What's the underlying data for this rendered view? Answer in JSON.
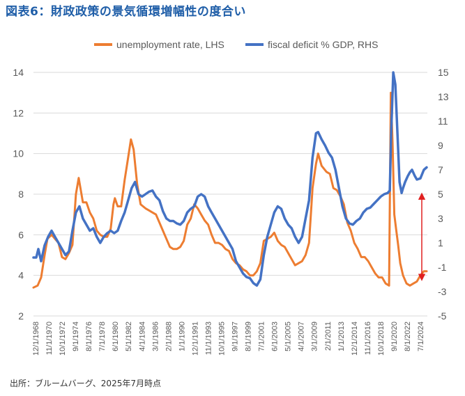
{
  "title": "図表6：財政政策の景気循環増幅性の度合い",
  "source": "出所：ブルームバーグ、2025年7月時点",
  "colors": {
    "unemployment": "#ed7d31",
    "deficit": "#4472c4",
    "arrow": "#e02020",
    "axis_text": "#595959",
    "gridline": "#d9d9d9"
  },
  "chart_data": {
    "type": "line",
    "title": "図表6：財政政策の景気循環増幅性の度合い",
    "legend_position": "top",
    "grid": true,
    "left_axis": {
      "ylim": [
        2,
        14
      ],
      "ticks": [
        2,
        4,
        6,
        8,
        10,
        12,
        14
      ]
    },
    "right_axis": {
      "ylim": [
        -5,
        15
      ],
      "ticks": [
        -5,
        -3,
        -1,
        1,
        3,
        5,
        7,
        9,
        11,
        13,
        15
      ]
    },
    "x_range": [
      1968.9,
      2025.5
    ],
    "x_tick_labels": [
      "12/1/1968",
      "11/1/1970",
      "10/1/1972",
      "9/1/1974",
      "8/1/1976",
      "7/1/1978",
      "6/1/1980",
      "5/1/1982",
      "4/1/1984",
      "3/1/1986",
      "2/1/1988",
      "1/1/1990",
      "12/1/1991",
      "11/1/1993",
      "10/1/1995",
      "9/1/1997",
      "8/1/1999",
      "7/1/2001",
      "6/1/2003",
      "5/1/2005",
      "4/1/2007",
      "3/1/2009",
      "2/1/2011",
      "1/1/2013",
      "12/1/2014",
      "11/1/2016",
      "10/1/2018",
      "9/1/2020",
      "8/1/2022",
      "7/1/2024"
    ],
    "series": [
      {
        "name": "unemployment rate, LHS",
        "axis": "left",
        "x": [
          1968.9,
          1969.5,
          1970.0,
          1970.5,
          1970.9,
          1971.5,
          1972.0,
          1972.5,
          1973.0,
          1973.5,
          1974.0,
          1974.5,
          1975.0,
          1975.4,
          1975.7,
          1976.0,
          1976.5,
          1977.0,
          1977.5,
          1978.0,
          1978.5,
          1979.0,
          1979.5,
          1980.0,
          1980.4,
          1980.6,
          1981.0,
          1981.5,
          1982.0,
          1982.5,
          1982.9,
          1983.3,
          1983.8,
          1984.3,
          1985.0,
          1985.5,
          1986.0,
          1986.5,
          1987.0,
          1987.5,
          1988.0,
          1988.5,
          1989.0,
          1989.5,
          1990.0,
          1990.5,
          1991.0,
          1991.5,
          1992.0,
          1992.5,
          1993.0,
          1993.5,
          1994.0,
          1994.5,
          1995.0,
          1995.5,
          1996.0,
          1996.5,
          1997.0,
          1997.5,
          1998.0,
          1998.5,
          1999.0,
          1999.5,
          2000.0,
          2000.5,
          2001.0,
          2001.5,
          2002.0,
          2002.5,
          2003.0,
          2003.5,
          2004.0,
          2004.5,
          2005.0,
          2005.5,
          2006.0,
          2006.5,
          2007.0,
          2007.5,
          2008.0,
          2008.5,
          2009.0,
          2009.5,
          2009.8,
          2010.3,
          2011.0,
          2011.5,
          2012.0,
          2012.5,
          2013.0,
          2013.5,
          2014.0,
          2014.5,
          2015.0,
          2015.5,
          2016.0,
          2016.5,
          2017.0,
          2017.5,
          2018.0,
          2018.5,
          2019.0,
          2019.5,
          2020.0,
          2020.25,
          2020.5,
          2020.75,
          2021.0,
          2021.3,
          2021.6,
          2022.0,
          2022.5,
          2023.0,
          2023.5,
          2024.0,
          2024.5,
          2025.0,
          2025.4
        ],
        "values": [
          3.4,
          3.5,
          3.9,
          5.0,
          5.8,
          6.0,
          5.8,
          5.6,
          4.9,
          4.8,
          5.1,
          5.5,
          8.0,
          8.8,
          8.2,
          7.6,
          7.6,
          7.1,
          6.8,
          6.2,
          6.0,
          5.9,
          5.9,
          6.3,
          7.5,
          7.8,
          7.4,
          7.4,
          8.7,
          9.8,
          10.7,
          10.2,
          8.5,
          7.5,
          7.3,
          7.2,
          7.1,
          7.0,
          6.6,
          6.2,
          5.8,
          5.4,
          5.3,
          5.3,
          5.4,
          5.7,
          6.5,
          6.8,
          7.5,
          7.3,
          7.0,
          6.7,
          6.5,
          6.0,
          5.6,
          5.6,
          5.5,
          5.3,
          5.2,
          4.8,
          4.6,
          4.5,
          4.3,
          4.2,
          4.0,
          4.0,
          4.2,
          4.6,
          5.7,
          5.8,
          5.9,
          6.1,
          5.7,
          5.5,
          5.4,
          5.1,
          4.8,
          4.5,
          4.6,
          4.7,
          5.0,
          5.6,
          8.3,
          9.5,
          10.0,
          9.4,
          9.1,
          9.0,
          8.3,
          8.2,
          7.9,
          7.5,
          6.6,
          6.2,
          5.6,
          5.3,
          4.9,
          4.9,
          4.7,
          4.4,
          4.1,
          3.9,
          3.9,
          3.6,
          3.5,
          13.0,
          10.5,
          7.0,
          6.3,
          5.5,
          4.6,
          4.0,
          3.6,
          3.5,
          3.6,
          3.7,
          4.0,
          4.2,
          4.2
        ]
      },
      {
        "name": "fiscal deficit % GDP, RHS",
        "axis": "right",
        "x": [
          1968.9,
          1969.3,
          1969.6,
          1970.0,
          1970.5,
          1971.0,
          1971.5,
          1972.0,
          1972.5,
          1973.0,
          1973.5,
          1974.0,
          1974.5,
          1975.0,
          1975.5,
          1976.0,
          1976.5,
          1977.0,
          1977.5,
          1978.0,
          1978.5,
          1979.0,
          1979.5,
          1980.0,
          1980.5,
          1981.0,
          1981.5,
          1982.0,
          1982.5,
          1983.0,
          1983.5,
          1984.0,
          1984.5,
          1985.0,
          1985.5,
          1986.0,
          1986.5,
          1987.0,
          1987.5,
          1988.0,
          1988.5,
          1989.0,
          1989.5,
          1990.0,
          1990.5,
          1991.0,
          1991.5,
          1992.0,
          1992.5,
          1993.0,
          1993.5,
          1994.0,
          1994.5,
          1995.0,
          1995.5,
          1996.0,
          1996.5,
          1997.0,
          1997.5,
          1998.0,
          1998.5,
          1999.0,
          1999.5,
          2000.0,
          2000.5,
          2001.0,
          2001.5,
          2002.0,
          2002.5,
          2003.0,
          2003.5,
          2004.0,
          2004.5,
          2005.0,
          2005.5,
          2006.0,
          2006.5,
          2007.0,
          2007.5,
          2008.0,
          2008.5,
          2009.0,
          2009.5,
          2009.8,
          2010.3,
          2010.8,
          2011.3,
          2011.8,
          2012.3,
          2012.8,
          2013.3,
          2013.8,
          2014.3,
          2014.8,
          2015.3,
          2015.8,
          2016.3,
          2016.8,
          2017.3,
          2017.8,
          2018.3,
          2018.8,
          2019.3,
          2019.8,
          2020.1,
          2020.3,
          2020.6,
          2020.9,
          2021.2,
          2021.5,
          2021.8,
          2022.0,
          2022.3,
          2022.7,
          2023.0,
          2023.3,
          2023.7,
          2024.0,
          2024.5,
          2025.0,
          2025.4
        ],
        "values": [
          -0.2,
          -0.2,
          0.5,
          -0.5,
          0.8,
          1.5,
          2.0,
          1.5,
          1.0,
          0.5,
          0.0,
          0.3,
          2.0,
          3.5,
          4.0,
          3.0,
          2.5,
          2.0,
          2.2,
          1.5,
          1.0,
          1.5,
          1.8,
          2.0,
          1.8,
          2.0,
          2.8,
          3.5,
          4.5,
          5.5,
          6.0,
          5.0,
          4.8,
          5.0,
          5.2,
          5.3,
          4.8,
          4.5,
          3.6,
          3.0,
          2.8,
          2.8,
          2.6,
          2.5,
          2.8,
          3.5,
          3.8,
          4.0,
          4.8,
          5.0,
          4.8,
          4.0,
          3.5,
          3.0,
          2.5,
          2.0,
          1.5,
          1.0,
          0.5,
          -0.5,
          -1.0,
          -1.5,
          -1.8,
          -1.9,
          -2.3,
          -2.5,
          -2.0,
          0.0,
          1.5,
          2.5,
          3.5,
          4.0,
          3.8,
          3.0,
          2.5,
          2.2,
          1.5,
          1.0,
          1.5,
          3.0,
          4.5,
          8.0,
          10.0,
          10.1,
          9.5,
          9.0,
          8.4,
          8.0,
          7.0,
          5.5,
          4.0,
          3.0,
          2.6,
          2.5,
          2.8,
          3.0,
          3.5,
          3.8,
          3.9,
          4.2,
          4.5,
          4.8,
          5.0,
          5.1,
          5.3,
          10.0,
          15.0,
          14.0,
          10.0,
          6.0,
          5.1,
          5.5,
          6.0,
          6.5,
          6.8,
          7.0,
          6.5,
          6.2,
          6.3,
          7.0,
          7.2
        ]
      }
    ],
    "annotation": {
      "type": "double-arrow",
      "axis": "left",
      "y_from": 7.9,
      "y_to": 3.9,
      "x": 2024.7
    }
  }
}
